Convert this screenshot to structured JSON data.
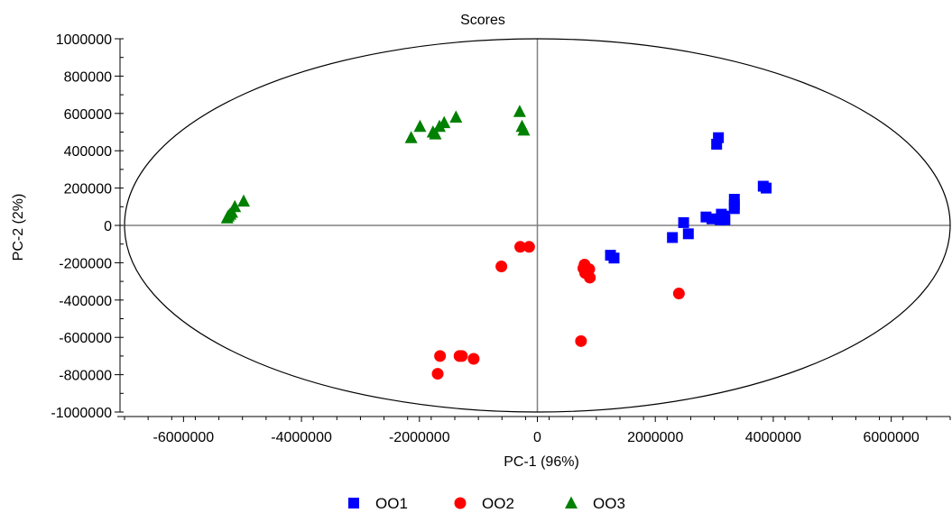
{
  "chart_data": {
    "type": "scatter",
    "title": "Scores",
    "xlabel": "PC-1 (96%)",
    "ylabel": "PC-2 (2%)",
    "xlim": [
      -7000000,
      7000000
    ],
    "ylim": [
      -1000000,
      1000000
    ],
    "x_ticks": [
      -6000000,
      -4000000,
      -2000000,
      0,
      2000000,
      4000000,
      6000000
    ],
    "x_tick_labels": [
      "-6000000",
      "-4000000",
      "-2000000",
      "0",
      "2000000",
      "4000000",
      "6000000"
    ],
    "y_ticks": [
      1000000,
      800000,
      600000,
      400000,
      200000,
      0,
      -200000,
      -400000,
      -600000,
      -800000,
      -1000000
    ],
    "y_tick_labels": [
      "1000000",
      "800000",
      "600000",
      "400000",
      "200000",
      "0",
      "-200000",
      "-400000",
      "-600000",
      "-800000",
      "-1000000"
    ],
    "grid": false,
    "zero_lines": true,
    "confidence_ellipse": {
      "center": [
        0,
        0
      ],
      "rx": 7000000,
      "ry": 1000000
    },
    "legend_position": "bottom",
    "series": [
      {
        "name": "OO1",
        "marker": "square",
        "color": "#0000ff",
        "points": [
          [
            3070000,
            470000
          ],
          [
            3040000,
            435000
          ],
          [
            3830000,
            210000
          ],
          [
            3880000,
            200000
          ],
          [
            3340000,
            140000
          ],
          [
            3340000,
            110000
          ],
          [
            3340000,
            90000
          ],
          [
            3120000,
            60000
          ],
          [
            3170000,
            50000
          ],
          [
            2860000,
            45000
          ],
          [
            2960000,
            35000
          ],
          [
            3180000,
            30000
          ],
          [
            3100000,
            30000
          ],
          [
            2480000,
            15000
          ],
          [
            2560000,
            -45000
          ],
          [
            2290000,
            -65000
          ],
          [
            1240000,
            -160000
          ],
          [
            1300000,
            -175000
          ]
        ]
      },
      {
        "name": "OO2",
        "marker": "circle",
        "color": "#ff0000",
        "points": [
          [
            -290000,
            -115000
          ],
          [
            -140000,
            -115000
          ],
          [
            -610000,
            -220000
          ],
          [
            800000,
            -210000
          ],
          [
            780000,
            -230000
          ],
          [
            880000,
            -235000
          ],
          [
            810000,
            -255000
          ],
          [
            890000,
            -280000
          ],
          [
            2400000,
            -365000
          ],
          [
            740000,
            -620000
          ],
          [
            -1650000,
            -700000
          ],
          [
            -1320000,
            -700000
          ],
          [
            -1280000,
            -700000
          ],
          [
            -1080000,
            -715000
          ],
          [
            -1690000,
            -795000
          ]
        ]
      },
      {
        "name": "OO3",
        "marker": "triangle",
        "color": "#008000",
        "points": [
          [
            -300000,
            610000
          ],
          [
            -260000,
            530000
          ],
          [
            -230000,
            510000
          ],
          [
            -1380000,
            580000
          ],
          [
            -1580000,
            550000
          ],
          [
            -1660000,
            530000
          ],
          [
            -1770000,
            500000
          ],
          [
            -1730000,
            490000
          ],
          [
            -1990000,
            530000
          ],
          [
            -2140000,
            470000
          ],
          [
            -4980000,
            130000
          ],
          [
            -5130000,
            100000
          ],
          [
            -5180000,
            70000
          ],
          [
            -5210000,
            60000
          ],
          [
            -5260000,
            40000
          ],
          [
            -5240000,
            50000
          ]
        ]
      }
    ]
  }
}
